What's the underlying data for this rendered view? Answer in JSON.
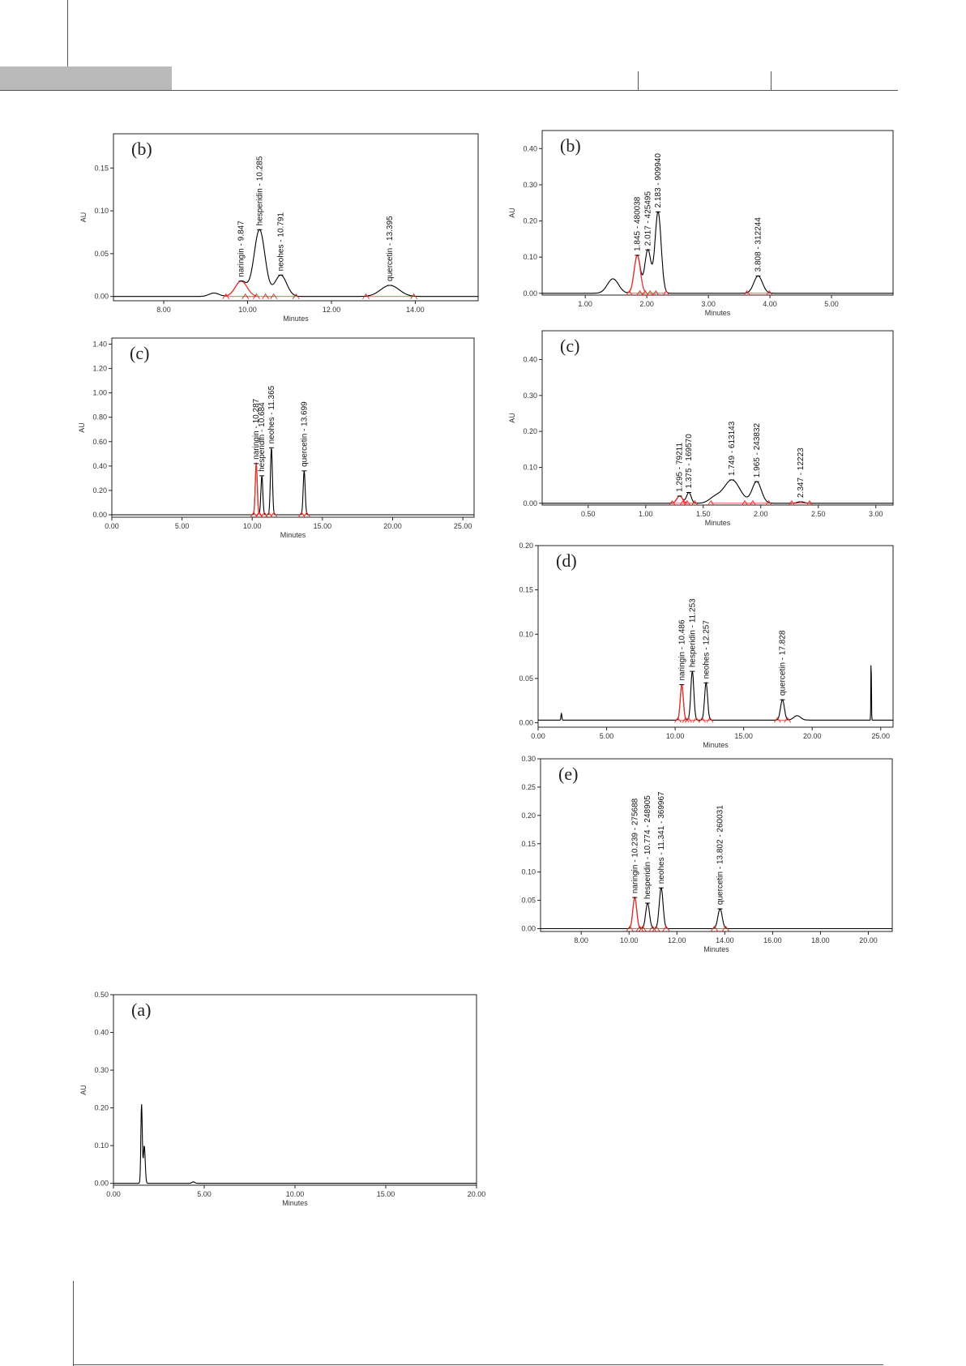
{
  "colors": {
    "trace": "#000000",
    "baseline_marker": "#e8322c",
    "highlight_peak": "#e8322c",
    "header_band": "#b9b9b9"
  },
  "chart_data": [
    {
      "id": "L1",
      "type": "line",
      "panel_label": "(b)",
      "xlabel": "Minutes",
      "ylabel": "AU",
      "xlim": [
        6.8,
        15.5
      ],
      "ylim": [
        -0.005,
        0.19
      ],
      "xticks": [
        "8.00",
        "10.00",
        "12.00",
        "14.00"
      ],
      "xtick_values": [
        8,
        10,
        12,
        14
      ],
      "yticks": [
        "0.00",
        "0.05",
        "0.10",
        "0.15"
      ],
      "ytick_values": [
        0,
        0.05,
        0.1,
        0.15
      ],
      "baseline": 0.0,
      "peaks": [
        {
          "label": "naringin - 9.847",
          "x": 9.847,
          "height": 0.018,
          "width": 0.14,
          "highlight": true
        },
        {
          "label": "hesperidin - 10.285",
          "x": 10.285,
          "height": 0.078,
          "width": 0.13,
          "highlight": false
        },
        {
          "label": "neohes - 10.791",
          "x": 10.791,
          "height": 0.025,
          "width": 0.14,
          "highlight": false
        },
        {
          "label": "quercetin - 13.395",
          "x": 13.395,
          "height": 0.013,
          "width": 0.22,
          "highlight": false
        }
      ],
      "minor_peaks": [
        {
          "x": 9.2,
          "height": 0.004,
          "width": 0.12
        }
      ]
    },
    {
      "id": "R1",
      "type": "line",
      "panel_label": "(b)",
      "xlabel": "Minutes",
      "ylabel": "AU",
      "xlim": [
        0.3,
        6.0
      ],
      "ylim": [
        -0.005,
        0.45
      ],
      "xticks": [
        "1.00",
        "2.00",
        "3.00",
        "4.00",
        "5.00"
      ],
      "xtick_values": [
        1,
        2,
        3,
        4,
        5
      ],
      "yticks": [
        "0.00",
        "0.10",
        "0.20",
        "0.30",
        "0.40"
      ],
      "ytick_values": [
        0,
        0.1,
        0.2,
        0.3,
        0.4
      ],
      "baseline": 0.0,
      "peaks": [
        {
          "label": "1.845 - 480038",
          "x": 1.845,
          "height": 0.105,
          "width": 0.05,
          "highlight": true
        },
        {
          "label": "2.017 - 425495",
          "x": 2.017,
          "height": 0.12,
          "width": 0.05,
          "highlight": false
        },
        {
          "label": "2.183 - 909940",
          "x": 2.183,
          "height": 0.225,
          "width": 0.05,
          "highlight": false
        },
        {
          "label": "3.808 - 312244",
          "x": 3.808,
          "height": 0.048,
          "width": 0.07,
          "highlight": false
        }
      ],
      "minor_peaks": [
        {
          "x": 1.45,
          "height": 0.04,
          "width": 0.09
        }
      ]
    },
    {
      "id": "L2",
      "type": "line",
      "panel_label": "(c)",
      "xlabel": "Minutes",
      "ylabel": "AU",
      "xlim": [
        0,
        25.8
      ],
      "ylim": [
        -0.02,
        1.45
      ],
      "xticks": [
        "0.00",
        "5.00",
        "10.00",
        "15.00",
        "20.00",
        "25.00"
      ],
      "xtick_values": [
        0,
        5,
        10,
        15,
        20,
        25
      ],
      "yticks": [
        "0.00",
        "0.20",
        "0.40",
        "0.60",
        "0.80",
        "1.00",
        "1.20",
        "1.40"
      ],
      "ytick_values": [
        0,
        0.2,
        0.4,
        0.6,
        0.8,
        1.0,
        1.2,
        1.4
      ],
      "baseline": 0.0,
      "peaks": [
        {
          "label": "naringin - 10.287",
          "x": 10.287,
          "height": 0.42,
          "width": 0.07,
          "highlight": true
        },
        {
          "label": "hesperidin - 10.684",
          "x": 10.684,
          "height": 0.32,
          "width": 0.07,
          "highlight": false
        },
        {
          "label": "neohes - 11.365",
          "x": 11.365,
          "height": 0.55,
          "width": 0.07,
          "highlight": false
        },
        {
          "label": "quercetin - 13.699",
          "x": 13.699,
          "height": 0.36,
          "width": 0.07,
          "highlight": false
        }
      ],
      "minor_peaks": []
    },
    {
      "id": "R2",
      "type": "line",
      "panel_label": "(c)",
      "xlabel": "Minutes",
      "ylabel": "AU",
      "xlim": [
        0.1,
        3.15
      ],
      "ylim": [
        -0.005,
        0.48
      ],
      "xticks": [
        "0.50",
        "1.00",
        "1.50",
        "2.00",
        "2.50",
        "3.00"
      ],
      "xtick_values": [
        0.5,
        1.0,
        1.5,
        2.0,
        2.5,
        3.0
      ],
      "yticks": [
        "0.00",
        "0.10",
        "0.20",
        "0.30",
        "0.40"
      ],
      "ytick_values": [
        0,
        0.1,
        0.2,
        0.3,
        0.4
      ],
      "baseline": 0.0,
      "peaks": [
        {
          "label": "1.295 - 79211",
          "x": 1.295,
          "height": 0.02,
          "width": 0.025,
          "highlight": true
        },
        {
          "label": "1.375 - 169570",
          "x": 1.375,
          "height": 0.03,
          "width": 0.02,
          "highlight": false
        },
        {
          "label": "1.749 - 613143",
          "x": 1.749,
          "height": 0.065,
          "width": 0.07,
          "highlight": false
        },
        {
          "label": "1.965 - 243832",
          "x": 1.965,
          "height": 0.06,
          "width": 0.04,
          "highlight": false
        },
        {
          "label": "2.347 - 12223",
          "x": 2.347,
          "height": 0.004,
          "width": 0.03,
          "highlight": false
        }
      ],
      "minor_peaks": [
        {
          "x": 1.6,
          "height": 0.015,
          "width": 0.05
        }
      ]
    },
    {
      "id": "R3",
      "type": "line",
      "panel_label": "(d)",
      "xlabel": "Minutes",
      "ylabel": "",
      "xlim": [
        0,
        25.9
      ],
      "ylim": [
        -0.005,
        0.2
      ],
      "xticks": [
        "0.00",
        "5.00",
        "10.00",
        "15.00",
        "20.00",
        "25.00"
      ],
      "xtick_values": [
        0,
        5,
        10,
        15,
        20,
        25
      ],
      "yticks": [
        "0.00",
        "0.05",
        "0.10",
        "0.15",
        "0.20"
      ],
      "ytick_values": [
        0,
        0.05,
        0.1,
        0.15,
        0.2
      ],
      "baseline": 0.003,
      "peaks": [
        {
          "label": "naringin - 10.486",
          "x": 10.486,
          "height": 0.04,
          "width": 0.11,
          "highlight": true
        },
        {
          "label": "hesperidin - 11.253",
          "x": 11.253,
          "height": 0.055,
          "width": 0.11,
          "highlight": false
        },
        {
          "label": "neohes - 12.257",
          "x": 12.257,
          "height": 0.042,
          "width": 0.11,
          "highlight": false
        },
        {
          "label": "quercetin - 17.828",
          "x": 17.828,
          "height": 0.023,
          "width": 0.14,
          "highlight": false
        }
      ],
      "minor_peaks": [
        {
          "x": 1.7,
          "height": 0.008,
          "width": 0.03
        },
        {
          "x": 18.9,
          "height": 0.005,
          "width": 0.25
        },
        {
          "x": 24.3,
          "height": 0.073,
          "width": 0.02
        }
      ]
    },
    {
      "id": "R4",
      "type": "line",
      "panel_label": "(e)",
      "xlabel": "Minutes",
      "ylabel": "",
      "xlim": [
        6.3,
        21.0
      ],
      "ylim": [
        -0.005,
        0.3
      ],
      "xticks": [
        "8.00",
        "10.00",
        "12.00",
        "14.00",
        "16.00",
        "18.00",
        "20.00"
      ],
      "xtick_values": [
        8,
        10,
        12,
        14,
        16,
        18,
        20
      ],
      "yticks": [
        "0.00",
        "0.05",
        "0.10",
        "0.15",
        "0.20",
        "0.25",
        "0.30"
      ],
      "ytick_values": [
        0,
        0.05,
        0.1,
        0.15,
        0.2,
        0.25,
        0.3
      ],
      "baseline": 0.0,
      "peaks": [
        {
          "label": "naringin - 10.239 - 275688",
          "x": 10.239,
          "height": 0.055,
          "width": 0.08,
          "highlight": true
        },
        {
          "label": "hesperidin - 10.774 - 248905",
          "x": 10.774,
          "height": 0.045,
          "width": 0.08,
          "highlight": false
        },
        {
          "label": "neohes - 11.341 - 369967",
          "x": 11.341,
          "height": 0.072,
          "width": 0.08,
          "highlight": false
        },
        {
          "label": "quercetin - 13.802 - 260031",
          "x": 13.802,
          "height": 0.035,
          "width": 0.09,
          "highlight": false
        }
      ],
      "minor_peaks": []
    },
    {
      "id": "L3",
      "type": "line",
      "panel_label": "(a)",
      "xlabel": "Minutes",
      "ylabel": "AU",
      "xlim": [
        0,
        20.0
      ],
      "ylim": [
        -0.005,
        0.5
      ],
      "xticks": [
        "0.00",
        "5.00",
        "10.00",
        "15.00",
        "20.00"
      ],
      "xtick_values": [
        0,
        5,
        10,
        15,
        20
      ],
      "yticks": [
        "0.00",
        "0.10",
        "0.20",
        "0.30",
        "0.40",
        "0.50"
      ],
      "ytick_values": [
        0,
        0.1,
        0.2,
        0.3,
        0.4,
        0.5
      ],
      "baseline": 0.0,
      "peaks": [],
      "minor_peaks": [
        {
          "x": 1.55,
          "height": 0.21,
          "width": 0.04
        },
        {
          "x": 1.7,
          "height": 0.1,
          "width": 0.05
        },
        {
          "x": 4.4,
          "height": 0.004,
          "width": 0.08
        }
      ]
    }
  ]
}
